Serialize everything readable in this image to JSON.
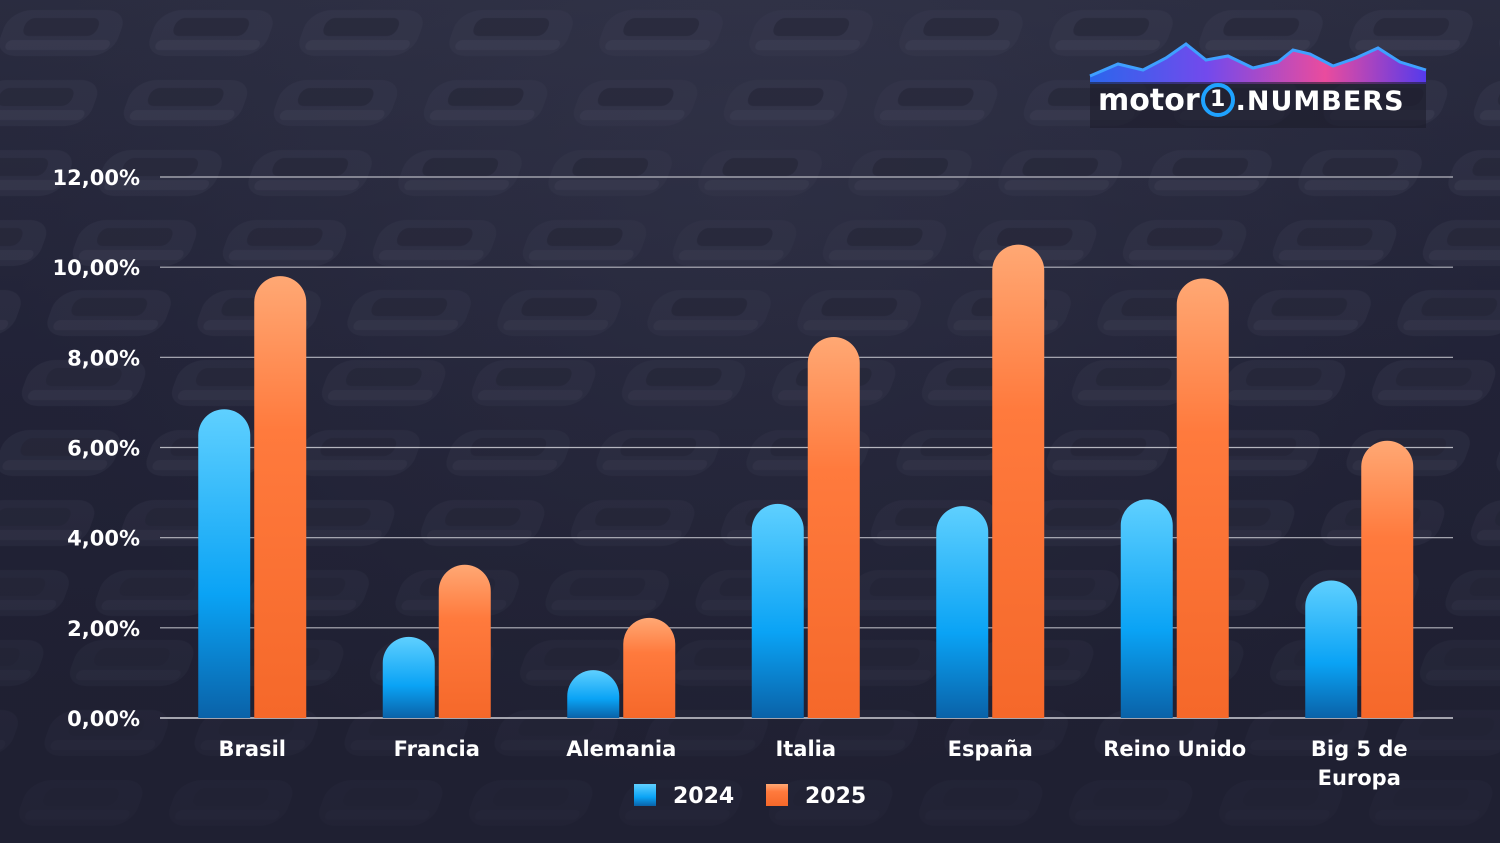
{
  "logo": {
    "brand_text": "motor",
    "ring_text": "1",
    "suffix_text": ".NUMBERS"
  },
  "colors": {
    "series_2024_top": "#5fd0ff",
    "series_2024_mid": "#0aa3f5",
    "series_2024_bottom": "#0a62a8",
    "series_2025_top": "#ffa874",
    "series_2025_mid": "#ff7a3d",
    "series_2025_bottom": "#f5682a",
    "gridline": "#d9d9e0",
    "text": "#ffffff"
  },
  "chart_data": {
    "type": "bar",
    "title": "",
    "xlabel": "",
    "ylabel": "",
    "ylim": [
      0,
      12
    ],
    "yticks": [
      0,
      2,
      4,
      6,
      8,
      10,
      12
    ],
    "ytick_labels": [
      "0,00%",
      "2,00%",
      "4,00%",
      "6,00%",
      "8,00%",
      "10,00%",
      "12,00%"
    ],
    "grid": true,
    "legend_position": "bottom-center",
    "categories": [
      [
        "Brasil"
      ],
      [
        "Francia"
      ],
      [
        "Alemania"
      ],
      [
        "Italia"
      ],
      [
        "España"
      ],
      [
        "Reino Unido"
      ],
      [
        "Big 5 de",
        "Europa"
      ]
    ],
    "series": [
      {
        "name": "2024",
        "values": [
          6.85,
          1.8,
          0.97,
          4.75,
          4.7,
          4.85,
          3.05
        ]
      },
      {
        "name": "2025",
        "values": [
          9.8,
          3.4,
          2.22,
          8.45,
          10.5,
          9.75,
          6.15
        ]
      }
    ]
  }
}
